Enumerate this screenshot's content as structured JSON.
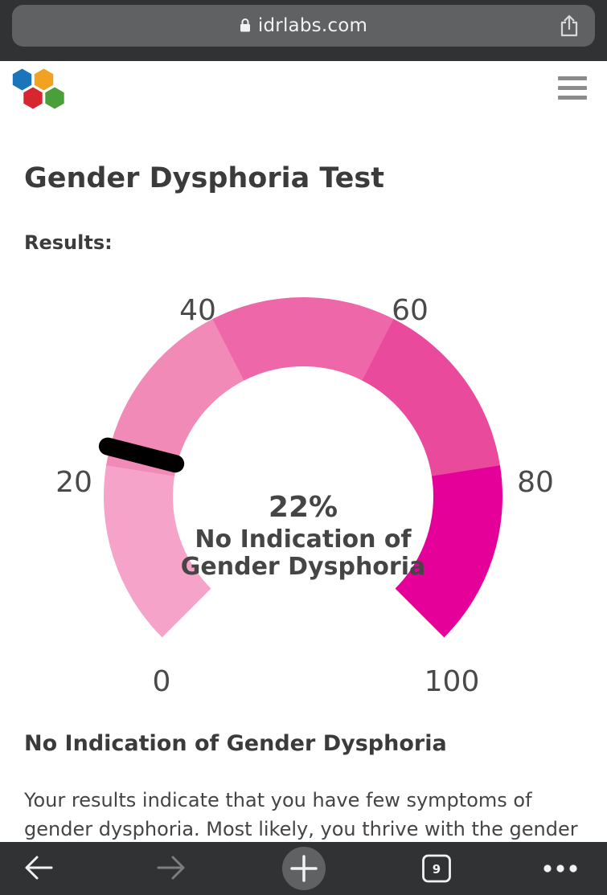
{
  "browser": {
    "url": "idrlabs.com",
    "tab_count": "9",
    "icons": [
      "lock-icon",
      "share-icon",
      "back-arrow-icon",
      "forward-arrow-icon",
      "new-tab-plus-icon",
      "tabs-icon",
      "more-icon"
    ]
  },
  "site": {
    "logo": "idrlabs-hexagon-logo",
    "menu_icon": "hamburger-menu-icon"
  },
  "page": {
    "title": "Gender Dysphoria Test",
    "results_label": "Results:"
  },
  "gauge": {
    "value": 22,
    "min": 0,
    "max": 100,
    "score_text": "22%",
    "result_line1": "No Indication of",
    "result_line2": "Gender Dysphoria",
    "tick_labels": [
      "0",
      "20",
      "40",
      "60",
      "80",
      "100"
    ],
    "segment_colors": [
      "#f5a3c8",
      "#f28ab7",
      "#ee67a8",
      "#ea4a9b",
      "#e6009a"
    ],
    "needle_color": "#000000"
  },
  "result": {
    "heading": "No Indication of Gender Dysphoria",
    "text": "Your results indicate that you have few symptoms of gender dysphoria. Most likely, you thrive with the gender"
  }
}
